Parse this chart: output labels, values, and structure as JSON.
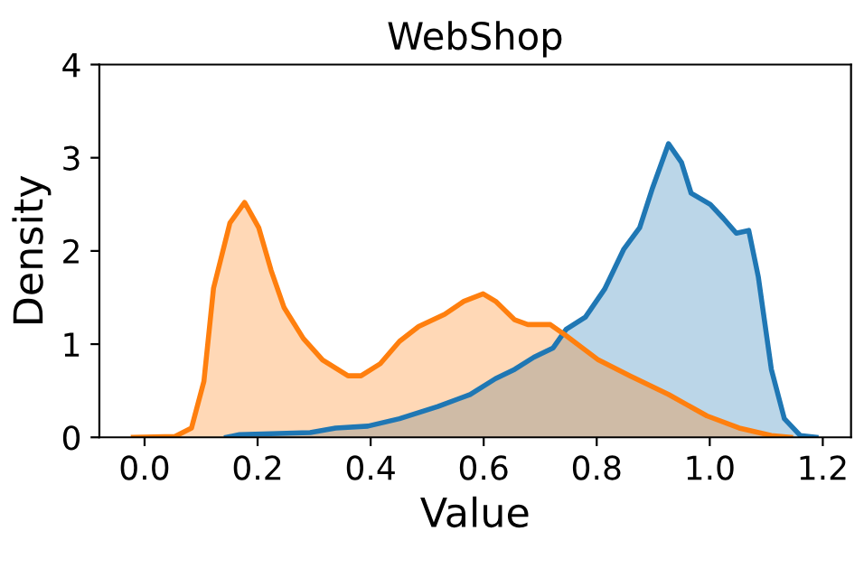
{
  "chart_data": {
    "type": "area",
    "title": "WebShop",
    "xlabel": "Value",
    "ylabel": "Density",
    "xlim": [
      -0.08,
      1.25
    ],
    "ylim": [
      0,
      4
    ],
    "xticks": [
      {
        "value": 0.0,
        "label": "0.0"
      },
      {
        "value": 0.2,
        "label": "0.2"
      },
      {
        "value": 0.4,
        "label": "0.4"
      },
      {
        "value": 0.6,
        "label": "0.6"
      },
      {
        "value": 0.8,
        "label": "0.8"
      },
      {
        "value": 1.0,
        "label": "1.0"
      },
      {
        "value": 1.2,
        "label": "1.2"
      }
    ],
    "yticks": [
      0,
      1,
      2,
      3,
      4
    ],
    "grid": false,
    "legend": false,
    "series": [
      {
        "color": "#1f77b4",
        "x": [
          0.145,
          0.168,
          0.293,
          0.338,
          0.395,
          0.451,
          0.519,
          0.576,
          0.621,
          0.655,
          0.689,
          0.723,
          0.746,
          0.78,
          0.814,
          0.848,
          0.876,
          0.899,
          0.927,
          0.95,
          0.967,
          1.001,
          1.024,
          1.047,
          1.069,
          1.086,
          1.109,
          1.132,
          1.16,
          1.188
        ],
        "values": [
          0,
          0.03,
          0.05,
          0.1,
          0.12,
          0.2,
          0.33,
          0.46,
          0.63,
          0.73,
          0.86,
          0.96,
          1.16,
          1.29,
          1.59,
          2.02,
          2.25,
          2.68,
          3.15,
          2.95,
          2.62,
          2.5,
          2.35,
          2.19,
          2.22,
          1.72,
          0.73,
          0.2,
          0.02,
          0
        ]
      },
      {
        "color": "#ff7f0e",
        "x": [
          -0.02,
          0.054,
          0.083,
          0.105,
          0.122,
          0.151,
          0.177,
          0.202,
          0.224,
          0.247,
          0.281,
          0.315,
          0.36,
          0.383,
          0.417,
          0.451,
          0.485,
          0.531,
          0.565,
          0.599,
          0.621,
          0.655,
          0.678,
          0.718,
          0.746,
          0.803,
          0.859,
          0.927,
          0.995,
          1.052,
          1.109,
          1.143
        ],
        "values": [
          0,
          0.01,
          0.1,
          0.6,
          1.6,
          2.3,
          2.52,
          2.25,
          1.79,
          1.39,
          1.06,
          0.83,
          0.66,
          0.66,
          0.79,
          1.03,
          1.19,
          1.32,
          1.46,
          1.54,
          1.46,
          1.26,
          1.21,
          1.21,
          1.09,
          0.83,
          0.66,
          0.46,
          0.23,
          0.1,
          0.02,
          0
        ]
      }
    ]
  }
}
